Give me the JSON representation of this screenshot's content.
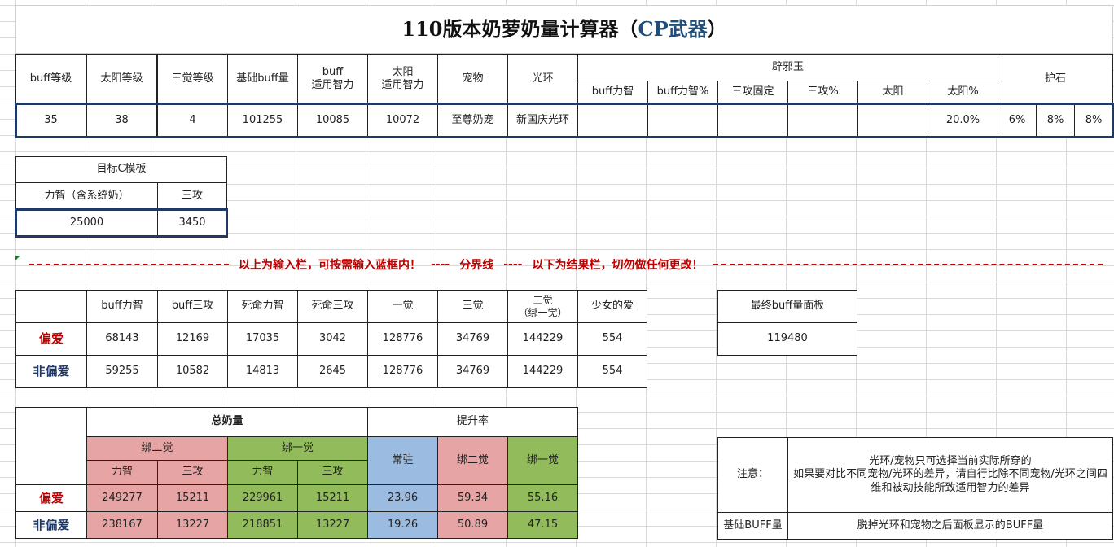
{
  "title": {
    "main": "110版本奶萝奶量计算器（",
    "cp": "CP武器",
    "end": "）"
  },
  "input": {
    "headers": {
      "buff_level": "buff等级",
      "sun_level": "太阳等级",
      "awaken3_level": "三觉等级",
      "base_buff": "基础buff量",
      "buff_int": "buff\n适用智力",
      "sun_int": "太阳\n适用智力",
      "pet": "宠物",
      "halo": "光环",
      "pixie": "辟邪玉",
      "stone": "护石"
    },
    "pixie_sub": [
      "buff力智",
      "buff力智%",
      "三攻固定",
      "三攻%",
      "太阳",
      "太阳%"
    ],
    "values": {
      "buff_level": "35",
      "sun_level": "38",
      "awaken3_level": "4",
      "base_buff": "101255",
      "buff_int": "10085",
      "sun_int": "10072",
      "pet": "至尊奶宠",
      "halo": "新国庆光环",
      "pixie": [
        "",
        "",
        "",
        "",
        "",
        "20.0%"
      ],
      "stone": [
        "6%",
        "8%",
        "8%"
      ]
    }
  },
  "target": {
    "title": "目标C模板",
    "headers": [
      "力智（含系统奶）",
      "三攻"
    ],
    "values": [
      "25000",
      "3450"
    ]
  },
  "divider": {
    "left_text": "以上为输入栏，可按需输入蓝框内！",
    "dashes": "----",
    "middle_text": "分界线",
    "right_text": "以下为结果栏，切勿做任何更改！"
  },
  "results": {
    "headers": [
      "buff力智",
      "buff三攻",
      "死命力智",
      "死命三攻",
      "一觉",
      "三觉",
      "三觉\n（绑一觉）",
      "少女的爱"
    ],
    "rows": [
      {
        "label": "偏爱",
        "values": [
          "68143",
          "12169",
          "17035",
          "3042",
          "128776",
          "34769",
          "144229",
          "554"
        ]
      },
      {
        "label": "非偏爱",
        "values": [
          "59255",
          "10582",
          "14813",
          "2645",
          "128776",
          "34769",
          "144229",
          "554"
        ]
      }
    ]
  },
  "final": {
    "label": "最终buff量面板",
    "value": "119480"
  },
  "total": {
    "header": "总奶量",
    "rate_header": "提升率",
    "bind2": "绑二觉",
    "bind1": "绑一觉",
    "stat": "力智",
    "atk": "三攻",
    "rate_cols": [
      "常驻",
      "绑二觉",
      "绑一觉"
    ],
    "rows": [
      {
        "label": "偏爱",
        "values": [
          "249277",
          "15211",
          "229961",
          "15211"
        ],
        "rates": [
          "23.96",
          "59.34",
          "55.16"
        ]
      },
      {
        "label": "非偏爱",
        "values": [
          "238167",
          "13227",
          "218851",
          "13227"
        ],
        "rates": [
          "19.26",
          "50.89",
          "47.15"
        ]
      }
    ]
  },
  "notes": {
    "note_label": "注意：",
    "note_text": "光环/宠物只可选择当前实际所穿的\n如果要对比不同宠物/光环的差异，请自行比除不同宠物/光环之间四维和被动技能所致适用智力的差异",
    "base_label": "基础BUFF量",
    "base_text": "脱掉光环和宠物之后面板显示的BUFF量"
  },
  "colors": {
    "red": "#c00000",
    "navy": "#1f3864",
    "pink": "#e6a4a4",
    "green": "#92bb5b",
    "blue": "#9bbbe0"
  }
}
